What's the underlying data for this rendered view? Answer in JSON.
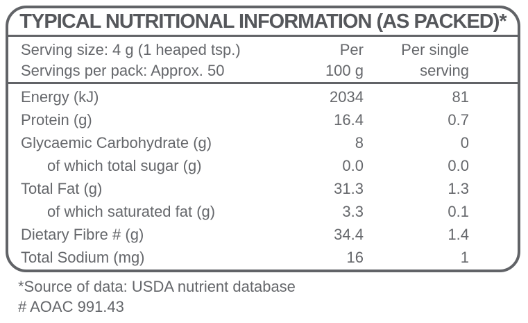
{
  "colors": {
    "text": "#65676b",
    "title": "#55575b",
    "border": "#616367",
    "background": "#ffffff"
  },
  "title": "TYPICAL NUTRITIONAL INFORMATION (AS PACKED)*",
  "serving_info": {
    "serving_size": "Serving size: 4 g (1 heaped tsp.)",
    "servings_per_pack": "Servings per pack: Approx. 50"
  },
  "columns": {
    "per_100g": {
      "line1": "Per",
      "line2": "100 g"
    },
    "per_single_serving": {
      "line1": "Per single",
      "line2": "serving"
    }
  },
  "rows": [
    {
      "label": "Energy (kJ)",
      "per_100g": "2034",
      "per_serving": "81",
      "indent": false
    },
    {
      "label": "Protein (g)",
      "per_100g": "16.4",
      "per_serving": "0.7",
      "indent": false
    },
    {
      "label": "Glycaemic Carbohydrate (g)",
      "per_100g": "8",
      "per_serving": "0",
      "indent": false
    },
    {
      "label": "of which total sugar (g)",
      "per_100g": "0.0",
      "per_serving": "0.0",
      "indent": true
    },
    {
      "label": "Total Fat (g)",
      "per_100g": "31.3",
      "per_serving": "1.3",
      "indent": false
    },
    {
      "label": "of which saturated fat (g)",
      "per_100g": "3.3",
      "per_serving": "0.1",
      "indent": true
    },
    {
      "label": "Dietary Fibre # (g)",
      "per_100g": "34.4",
      "per_serving": "1.4",
      "indent": false
    },
    {
      "label": "Total Sodium (mg)",
      "per_100g": "16",
      "per_serving": "1",
      "indent": false
    }
  ],
  "footnotes": {
    "source": "*Source of data: USDA nutrient database",
    "aoac": "# AOAC 991.43"
  }
}
